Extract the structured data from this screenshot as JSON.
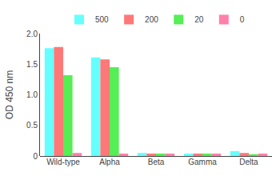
{
  "chart_data": {
    "type": "bar",
    "ylabel": "OD 450 nm",
    "categories": [
      "Wild-type",
      "Alpha",
      "Beta",
      "Gamma",
      "Delta"
    ],
    "series": [
      {
        "name": "500",
        "color": "#66FFFF",
        "values": [
          1.76,
          1.61,
          0.05,
          0.04,
          0.08
        ]
      },
      {
        "name": "200",
        "color": "#FF7878",
        "values": [
          1.78,
          1.58,
          0.04,
          0.04,
          0.05
        ]
      },
      {
        "name": "20",
        "color": "#55EE55",
        "values": [
          1.32,
          1.45,
          0.04,
          0.04,
          0.03
        ]
      },
      {
        "name": "0",
        "color": "#FF80AA",
        "values": [
          0.05,
          0.04,
          0.04,
          0.04,
          0.04
        ]
      }
    ],
    "ylim": [
      0.0,
      2.0
    ],
    "yticks": [
      0,
      {
        "value": 0.5,
        "label": "0.5"
      },
      {
        "value": 1.0,
        "label": "1.0"
      },
      {
        "value": 1.5,
        "label": "1.5"
      },
      {
        "value": 2.0,
        "label": "2.0"
      }
    ],
    "grid": false,
    "legend": "top"
  }
}
